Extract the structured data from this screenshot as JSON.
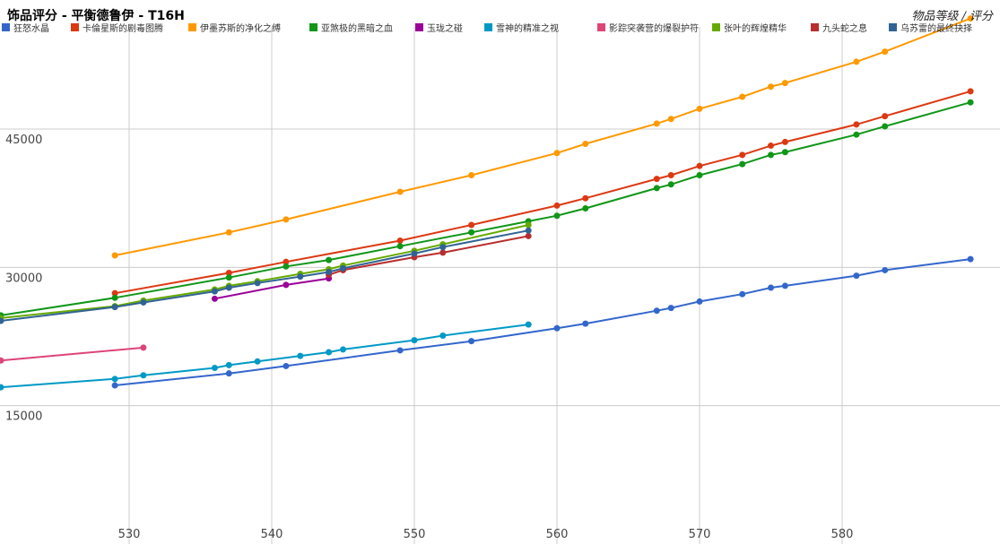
{
  "chart_data": {
    "type": "line",
    "title": "饰品评分 - 平衡德鲁伊 - T16H",
    "axis_title": "物品等级 / 评分",
    "xlim": [
      520,
      590
    ],
    "ylim": [
      0,
      59000
    ],
    "xticks": [
      530,
      540,
      550,
      560,
      570,
      580
    ],
    "yticks": [
      15000,
      30000,
      45000
    ],
    "grid": true,
    "legend_position": "top",
    "series": [
      {
        "name": "狂怒水晶",
        "color": "#3366cc",
        "x": [
          529,
          537,
          541,
          549,
          554,
          560,
          562,
          567,
          568,
          570,
          573,
          575,
          576,
          581,
          583,
          589
        ],
        "y": [
          17200,
          18500,
          19300,
          21000,
          22000,
          23400,
          23900,
          25300,
          25600,
          26300,
          27100,
          27800,
          28000,
          29100,
          29700,
          30900
        ]
      },
      {
        "name": "卡倫星斯的剧毒图腾",
        "color": "#dc3912",
        "x": [
          529,
          537,
          541,
          549,
          554,
          560,
          562,
          567,
          568,
          570,
          573,
          575,
          576,
          581,
          583,
          589
        ],
        "y": [
          27200,
          29400,
          30600,
          32900,
          34600,
          36700,
          37500,
          39600,
          40000,
          41000,
          42200,
          43200,
          43600,
          45500,
          46400,
          49100
        ]
      },
      {
        "name": "伊墨苏斯的净化之缚",
        "color": "#ff9900",
        "x": [
          529,
          537,
          541,
          549,
          554,
          560,
          562,
          567,
          568,
          570,
          573,
          575,
          576,
          581,
          583,
          589
        ],
        "y": [
          31300,
          33800,
          35200,
          38200,
          40000,
          42400,
          43400,
          45600,
          46100,
          47200,
          48500,
          49600,
          50000,
          52300,
          53400,
          57000
        ]
      },
      {
        "name": "亚煞极的黑暗之血",
        "color": "#109618",
        "x": [
          521,
          529,
          537,
          541,
          544,
          549,
          554,
          558,
          560,
          562,
          567,
          568,
          570,
          573,
          575,
          576,
          581,
          583,
          589
        ],
        "y": [
          24800,
          26700,
          28900,
          30100,
          30800,
          32300,
          33800,
          35000,
          35600,
          36400,
          38600,
          39000,
          40000,
          41200,
          42200,
          42500,
          44400,
          45300,
          47900
        ]
      },
      {
        "name": "玉珑之碰",
        "color": "#990099",
        "x": [
          536,
          541,
          544
        ],
        "y": [
          26600,
          28100,
          28800
        ]
      },
      {
        "name": "雪神的精准之视",
        "color": "#0099c6",
        "x": [
          521,
          529,
          531,
          536,
          537,
          539,
          542,
          544,
          545,
          550,
          552,
          558
        ],
        "y": [
          17000,
          17900,
          18300,
          19100,
          19400,
          19800,
          20400,
          20800,
          21100,
          22100,
          22600,
          23800
        ]
      },
      {
        "name": "影踪突袭营的爆裂护符",
        "color": "#dd4477",
        "x": [
          521,
          531
        ],
        "y": [
          19900,
          21300
        ]
      },
      {
        "name": "张叶的辉煌精华",
        "color": "#66aa00",
        "x": [
          521,
          529,
          531,
          536,
          537,
          539,
          542,
          544,
          545,
          550,
          552,
          558
        ],
        "y": [
          24500,
          25800,
          26400,
          27600,
          28000,
          28500,
          29300,
          29800,
          30200,
          31800,
          32500,
          34600
        ]
      },
      {
        "name": "九头蛇之息",
        "color": "#b82e2e",
        "x": [
          544,
          545,
          550,
          552,
          558
        ],
        "y": [
          29200,
          29700,
          31100,
          31600,
          33400
        ]
      },
      {
        "name": "乌苏雷的最终抉择",
        "color": "#316395",
        "x": [
          521,
          529,
          531,
          536,
          537,
          539,
          542,
          544,
          545,
          550,
          552,
          558
        ],
        "y": [
          24200,
          25700,
          26200,
          27400,
          27800,
          28300,
          29000,
          29500,
          29900,
          31500,
          32200,
          34000
        ]
      }
    ]
  }
}
